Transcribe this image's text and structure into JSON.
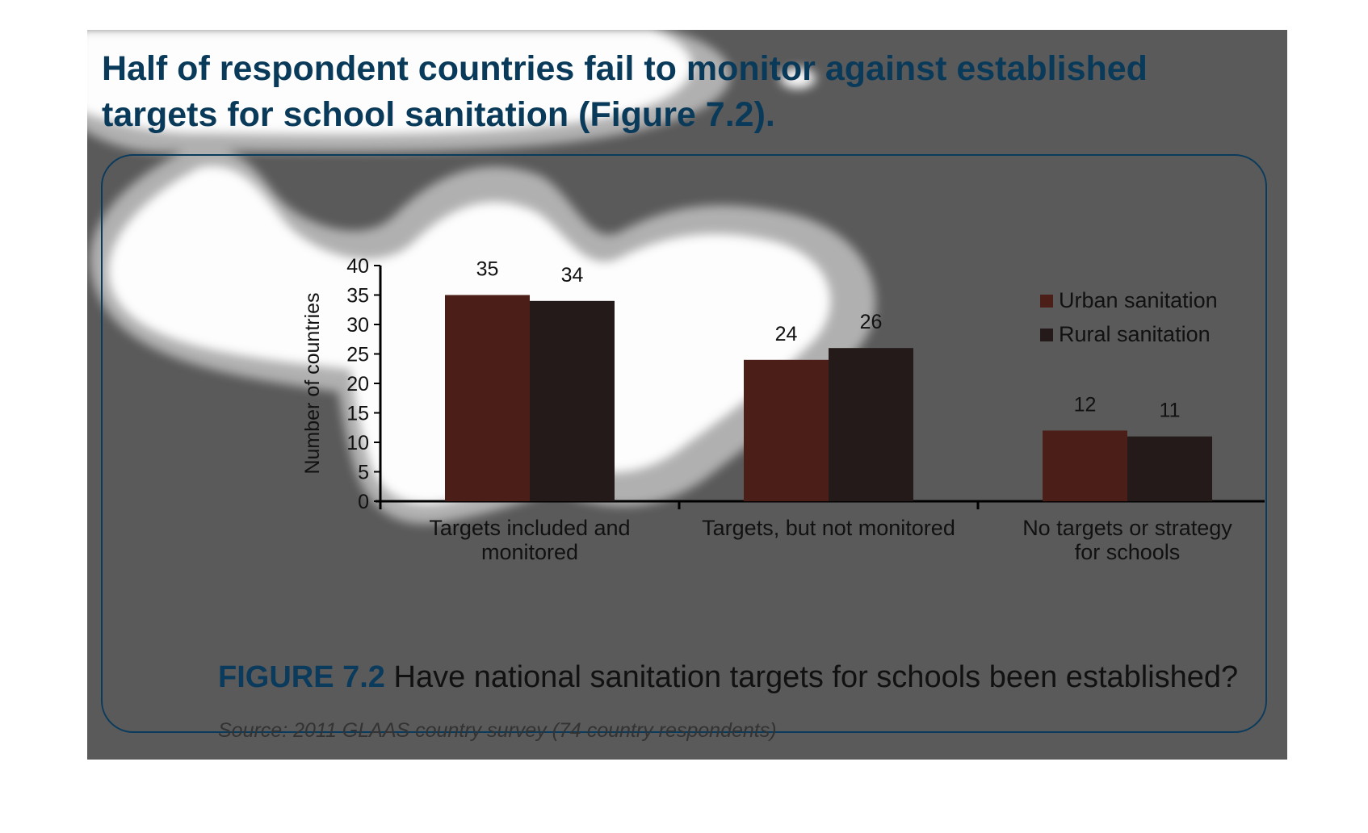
{
  "headline": "Half of respondent countries fail to monitor against established targets for school sanitation (Figure 7.2).",
  "caption": {
    "figure_number": "FIGURE 7.2",
    "text": "Have national sanitation targets for schools been established?"
  },
  "source": "Source: 2011 GLAAS country survey (74 country respondents)",
  "colors": {
    "urban": "#4b1f17",
    "rural": "#231a19",
    "panel_border": "#0b3b5c",
    "headline": "#0a3a5a",
    "overlay_highlight": "#00e5ff"
  },
  "chart_data": {
    "type": "bar",
    "title": "",
    "xlabel": "",
    "ylabel": "Number of countries",
    "ylim": [
      0,
      40
    ],
    "yticks": [
      "0",
      "5",
      "10",
      "15",
      "20",
      "25",
      "30",
      "35",
      "40"
    ],
    "categories": [
      [
        "Targets included and",
        "monitored"
      ],
      [
        "Targets, but not monitored"
      ],
      [
        "No targets or strategy",
        "for schools"
      ]
    ],
    "series": [
      {
        "name": "Urban sanitation",
        "values": [
          35,
          24,
          12
        ],
        "color": "#4b1f17"
      },
      {
        "name": "Rural sanitation",
        "values": [
          34,
          26,
          11
        ],
        "color": "#231a19"
      }
    ],
    "data_labels": true,
    "legend": "top-right",
    "grid": false
  }
}
